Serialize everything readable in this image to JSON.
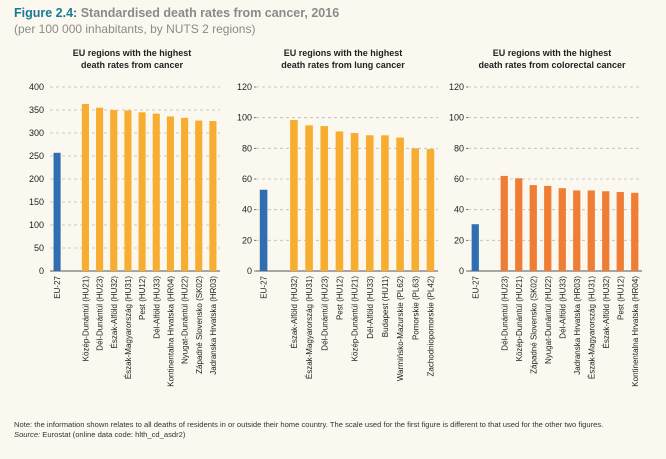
{
  "figure": {
    "label": "Figure 2.4:",
    "title": "Standardised death rates from cancer, 2016",
    "subtitle": "(per 100 000 inhabitants, by NUTS 2 regions)"
  },
  "colors": {
    "eu_bar": "#2f6eb1",
    "cancer_bar": "#f6ad30",
    "lung_bar": "#f6ad30",
    "colorectal_bar": "#ef7d34",
    "grid": "#bbbbbb"
  },
  "chart_data": [
    {
      "type": "bar",
      "title": "EU regions with the highest death rates from cancer",
      "ylim": [
        0,
        400
      ],
      "yticks": [
        0,
        50,
        100,
        150,
        200,
        250,
        300,
        350,
        400
      ],
      "grid": true,
      "categories": [
        "EU-27",
        "Közép-Dunántúl (HU21)",
        "Dél-Dunántúl (HU23)",
        "Észak-Alföld (HU32)",
        "Észak-Magyarország (HU31)",
        "Pest (HU12)",
        "Dél-Alföld (HU33)",
        "Kontinentalna Hrvatska (HR04)",
        "Nyugat-Dunántúl (HU22)",
        "Západné Slovensko (SK02)",
        "Jadranska Hrvatska (HR03)"
      ],
      "values": [
        257,
        363,
        355,
        350,
        349,
        345,
        342,
        336,
        333,
        327,
        326
      ]
    },
    {
      "type": "bar",
      "title": "EU regions with the highest death rates from lung cancer",
      "ylim": [
        0,
        120
      ],
      "yticks": [
        0,
        20,
        40,
        60,
        80,
        100,
        120
      ],
      "grid": true,
      "categories": [
        "EU-27",
        "Észak-Alföld (HU32)",
        "Észak-Magyarország (HU31)",
        "Dél-Dunántúl (HU23)",
        "Pest (HU12)",
        "Közép-Dunántúl (HU21)",
        "Dél-Alföld (HU33)",
        "Budapest (HU11)",
        "Warmińsko-Mazurskie (PL62)",
        "Pomorskie (PL63)",
        "Zachodniopomorskie (PL42)"
      ],
      "values": [
        53,
        98.5,
        95,
        94.5,
        91,
        90,
        88.5,
        88.5,
        87,
        80,
        79.5
      ]
    },
    {
      "type": "bar",
      "title": "EU regions with the highest death rates from colorectal cancer",
      "ylim": [
        0,
        120
      ],
      "yticks": [
        0,
        20,
        40,
        60,
        80,
        100,
        120
      ],
      "grid": true,
      "categories": [
        "EU-27",
        "Dél-Dunántúl (HU23)",
        "Közép-Dunántúl (HU21)",
        "Západné Slovensko (SK02)",
        "Nyugat-Dunántúl (HU22)",
        "Dél-Alföld (HU33)",
        "Jadranska Hrvatska (HR03)",
        "Észak-Magyarország (HU31)",
        "Észak-Alföld (HU32)",
        "Pest (HU12)",
        "Kontinentalna Hrvatska (HR04)"
      ],
      "values": [
        30.5,
        62,
        60.5,
        56,
        55.5,
        54,
        52.5,
        52.5,
        52,
        51.5,
        51
      ]
    }
  ],
  "footer": {
    "note": "Note: the information shown relates to all deaths of residents in or outside their home country. The scale used for the first figure is different to that used for the other two figures.",
    "source_label": "Source:",
    "source_text": " Eurostat (online data code: hlth_cd_asdr2)"
  }
}
